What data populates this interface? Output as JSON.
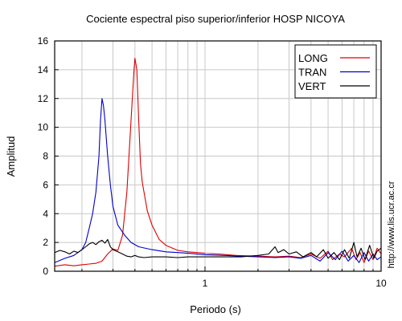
{
  "chart_data": {
    "type": "line",
    "title": "Cociente espectral piso superior/inferior  HOSP NICOYA",
    "xlabel": "Periodo (s)",
    "ylabel": "Amplitud",
    "xscale": "log",
    "xlim": [
      0.14,
      10
    ],
    "ylim": [
      0,
      16
    ],
    "x_tick_labels": [
      {
        "value": 1,
        "label": "1"
      },
      {
        "value": 10,
        "label": "10"
      }
    ],
    "y_tick_labels": [
      0,
      2,
      4,
      6,
      8,
      10,
      12,
      14,
      16
    ],
    "grid": true,
    "legend_position": "top-right",
    "side_note": "http://www.lis.ucr.ac.cr",
    "series": [
      {
        "name": "LONG",
        "color": "#dd0000",
        "points": [
          [
            0.14,
            0.35
          ],
          [
            0.16,
            0.45
          ],
          [
            0.18,
            0.38
          ],
          [
            0.2,
            0.45
          ],
          [
            0.22,
            0.5
          ],
          [
            0.24,
            0.55
          ],
          [
            0.26,
            0.7
          ],
          [
            0.28,
            1.2
          ],
          [
            0.3,
            1.55
          ],
          [
            0.32,
            1.45
          ],
          [
            0.34,
            2.5
          ],
          [
            0.36,
            5.5
          ],
          [
            0.38,
            10.5
          ],
          [
            0.395,
            14.0
          ],
          [
            0.4,
            14.8
          ],
          [
            0.41,
            14.0
          ],
          [
            0.42,
            10.5
          ],
          [
            0.43,
            7.5
          ],
          [
            0.44,
            6.2
          ],
          [
            0.45,
            5.5
          ],
          [
            0.47,
            4.2
          ],
          [
            0.5,
            3.2
          ],
          [
            0.55,
            2.2
          ],
          [
            0.6,
            1.8
          ],
          [
            0.7,
            1.45
          ],
          [
            0.8,
            1.35
          ],
          [
            0.9,
            1.3
          ],
          [
            1.0,
            1.25
          ],
          [
            1.2,
            1.2
          ],
          [
            1.5,
            1.1
          ],
          [
            2.0,
            1.05
          ],
          [
            2.5,
            1.0
          ],
          [
            3.0,
            1.05
          ],
          [
            3.5,
            0.95
          ],
          [
            4.0,
            1.2
          ],
          [
            4.5,
            0.9
          ],
          [
            5.0,
            1.4
          ],
          [
            5.3,
            0.8
          ],
          [
            5.8,
            1.2
          ],
          [
            6.2,
            1.0
          ],
          [
            6.8,
            1.6
          ],
          [
            7.2,
            0.8
          ],
          [
            7.6,
            1.3
          ],
          [
            8.0,
            0.6
          ],
          [
            8.5,
            1.4
          ],
          [
            9.0,
            0.8
          ],
          [
            9.5,
            1.6
          ],
          [
            10.0,
            1.2
          ]
        ]
      },
      {
        "name": "TRAN",
        "color": "#0000cc",
        "points": [
          [
            0.14,
            0.6
          ],
          [
            0.16,
            0.9
          ],
          [
            0.18,
            1.1
          ],
          [
            0.2,
            1.5
          ],
          [
            0.21,
            2.0
          ],
          [
            0.22,
            3.0
          ],
          [
            0.23,
            4.0
          ],
          [
            0.24,
            5.5
          ],
          [
            0.25,
            8.0
          ],
          [
            0.255,
            10.5
          ],
          [
            0.26,
            12.0
          ],
          [
            0.265,
            11.5
          ],
          [
            0.27,
            10.5
          ],
          [
            0.28,
            8.0
          ],
          [
            0.29,
            6.0
          ],
          [
            0.3,
            4.5
          ],
          [
            0.32,
            3.2
          ],
          [
            0.35,
            2.5
          ],
          [
            0.38,
            2.0
          ],
          [
            0.42,
            1.7
          ],
          [
            0.5,
            1.5
          ],
          [
            0.6,
            1.35
          ],
          [
            0.7,
            1.3
          ],
          [
            0.8,
            1.25
          ],
          [
            1.0,
            1.15
          ],
          [
            1.3,
            1.1
          ],
          [
            1.6,
            1.05
          ],
          [
            2.0,
            1.0
          ],
          [
            2.5,
            0.95
          ],
          [
            3.0,
            1.0
          ],
          [
            3.5,
            0.9
          ],
          [
            4.0,
            1.1
          ],
          [
            4.5,
            0.7
          ],
          [
            5.0,
            1.3
          ],
          [
            5.5,
            0.8
          ],
          [
            6.0,
            1.4
          ],
          [
            6.5,
            0.7
          ],
          [
            7.0,
            1.1
          ],
          [
            7.5,
            0.6
          ],
          [
            8.0,
            1.3
          ],
          [
            8.5,
            0.7
          ],
          [
            9.0,
            1.2
          ],
          [
            9.5,
            0.8
          ],
          [
            10.0,
            1.0
          ]
        ]
      },
      {
        "name": "VERT",
        "color": "#000000",
        "points": [
          [
            0.14,
            1.3
          ],
          [
            0.15,
            1.45
          ],
          [
            0.16,
            1.35
          ],
          [
            0.17,
            1.2
          ],
          [
            0.18,
            1.4
          ],
          [
            0.19,
            1.3
          ],
          [
            0.2,
            1.5
          ],
          [
            0.21,
            1.7
          ],
          [
            0.22,
            1.9
          ],
          [
            0.23,
            2.0
          ],
          [
            0.24,
            1.85
          ],
          [
            0.25,
            2.05
          ],
          [
            0.26,
            2.15
          ],
          [
            0.27,
            1.95
          ],
          [
            0.28,
            2.2
          ],
          [
            0.29,
            1.7
          ],
          [
            0.3,
            1.5
          ],
          [
            0.32,
            1.35
          ],
          [
            0.34,
            1.2
          ],
          [
            0.36,
            1.05
          ],
          [
            0.38,
            1.0
          ],
          [
            0.4,
            1.1
          ],
          [
            0.42,
            1.0
          ],
          [
            0.45,
            0.95
          ],
          [
            0.5,
            1.0
          ],
          [
            0.6,
            1.0
          ],
          [
            0.7,
            0.95
          ],
          [
            0.8,
            1.0
          ],
          [
            1.0,
            1.0
          ],
          [
            1.3,
            1.0
          ],
          [
            1.6,
            1.0
          ],
          [
            2.0,
            1.1
          ],
          [
            2.3,
            1.2
          ],
          [
            2.5,
            1.7
          ],
          [
            2.6,
            1.3
          ],
          [
            2.8,
            1.5
          ],
          [
            3.0,
            1.2
          ],
          [
            3.3,
            1.35
          ],
          [
            3.6,
            1.0
          ],
          [
            4.0,
            1.3
          ],
          [
            4.3,
            1.0
          ],
          [
            4.7,
            1.5
          ],
          [
            5.0,
            0.9
          ],
          [
            5.4,
            1.3
          ],
          [
            5.8,
            0.8
          ],
          [
            6.2,
            1.5
          ],
          [
            6.6,
            0.9
          ],
          [
            7.0,
            2.0
          ],
          [
            7.3,
            1.0
          ],
          [
            7.7,
            1.6
          ],
          [
            8.1,
            0.8
          ],
          [
            8.6,
            1.8
          ],
          [
            9.1,
            0.9
          ],
          [
            9.5,
            1.4
          ],
          [
            10.0,
            1.6
          ]
        ]
      }
    ]
  }
}
